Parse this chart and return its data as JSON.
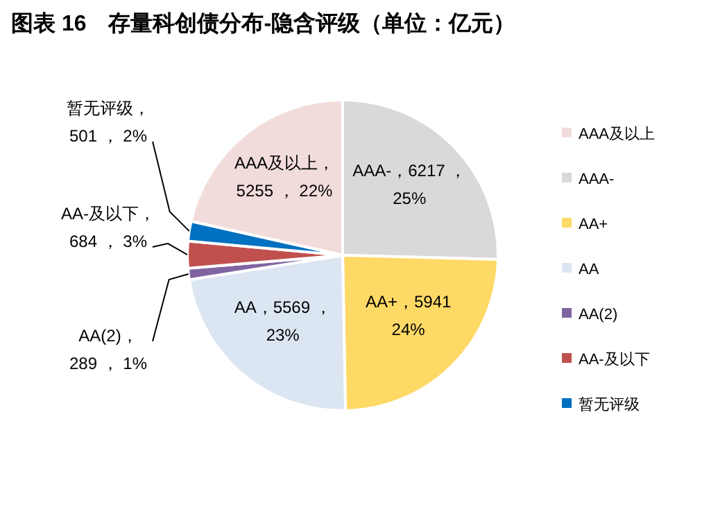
{
  "chart_data": {
    "type": "pie",
    "title": "图表 16　存量科创债分布-隐含评级（单位：亿元）",
    "categories": [
      "AAA及以上",
      "AAA-",
      "AA+",
      "AA",
      "AA(2)",
      "AA-及以下",
      "暂无评级"
    ],
    "values": [
      5255,
      6217,
      5941,
      5569,
      289,
      684,
      501
    ],
    "colors": [
      "#f2dcdb",
      "#d9d9d9",
      "#ffd966",
      "#dce6f2",
      "#8064a2",
      "#c0504d",
      "#0070c0"
    ],
    "value_labels": [
      "AAA及以上，\n5255 ， 22%",
      "AAA-，6217 ，\n25%",
      "AA+，5941\n24%",
      "AA，5569 ，\n23%",
      "AA(2)，\n289 ， 1%",
      "AA-及以下，\n684 ， 3%",
      "暂无评级，\n501 ， 2%"
    ],
    "legend": "right"
  }
}
